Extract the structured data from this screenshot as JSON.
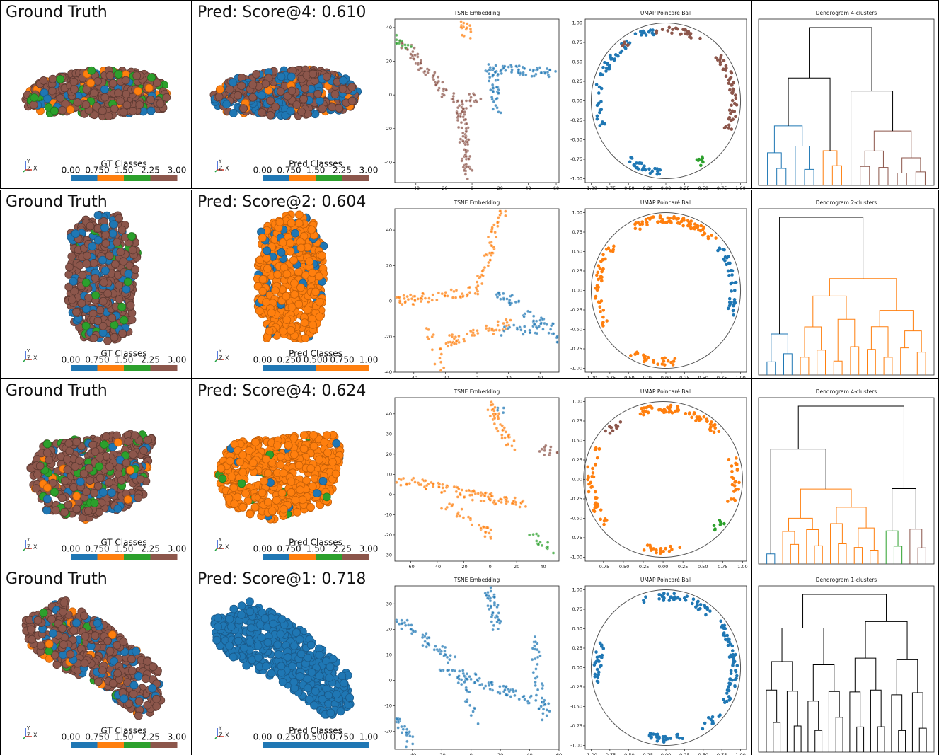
{
  "rows": [
    {
      "ground_truth": {
        "title": "Ground Truth",
        "triad": [
          "Y",
          "Z",
          "X"
        ],
        "colorbar": {
          "label": "GT Classes",
          "ticks": [
            "0.00",
            "0.750",
            "1.50",
            "2.25",
            "3.00"
          ],
          "colors": [
            "#1f77b4",
            "#ff7f0e",
            "#2ca02c",
            "#8c564b"
          ]
        }
      },
      "prediction": {
        "title": "Pred: Score@4: 0.610",
        "triad": [
          "Y",
          "Z",
          "X"
        ],
        "colorbar": {
          "label": "Pred Classes",
          "ticks": [
            "0.00",
            "0.750",
            "1.50",
            "2.25",
            "3.00"
          ],
          "colors": [
            "#1f77b4",
            "#ff7f0e",
            "#2ca02c",
            "#8c564b"
          ]
        }
      },
      "tsne": {
        "title": "TSNE Embedding",
        "xlim": [
          -55,
          62
        ],
        "xticks": [
          -40,
          -20,
          0,
          20,
          40,
          60
        ],
        "ylim": [
          -52,
          45
        ],
        "yticks": [
          -40,
          -20,
          0,
          20,
          40
        ]
      },
      "umap": {
        "title": "UMAP Poincaré Ball",
        "xlim": [
          -1.08,
          1.08
        ],
        "xticks": [
          {
            "value": -1,
            "label": "-1.00"
          },
          {
            "value": -0.75,
            "label": "-0.75"
          },
          {
            "value": -0.5,
            "label": "-0.50"
          },
          {
            "value": -0.25,
            "label": "-0.25"
          },
          {
            "value": 0,
            "label": "0.00"
          },
          {
            "value": 0.25,
            "label": "0.25"
          },
          {
            "value": 0.5,
            "label": "0.50"
          },
          {
            "value": 0.75,
            "label": "0.75"
          },
          {
            "value": 1,
            "label": "1.00"
          }
        ],
        "ylim": [
          -1.05,
          1.05
        ],
        "yticks": [
          {
            "value": -1,
            "label": "-1.00"
          },
          {
            "value": -0.75,
            "label": "-0.75"
          },
          {
            "value": -0.5,
            "label": "-0.50"
          },
          {
            "value": -0.25,
            "label": "-0.25"
          },
          {
            "value": 0,
            "label": "0.00"
          },
          {
            "value": 0.25,
            "label": "0.25"
          },
          {
            "value": 0.5,
            "label": "0.50"
          },
          {
            "value": 0.75,
            "label": "0.75"
          },
          {
            "value": 1,
            "label": "1.00"
          }
        ]
      },
      "dendrogram": {
        "title": "Dendrogram 4-clusters"
      }
    },
    {
      "ground_truth": {
        "title": "Ground Truth",
        "triad": [
          "Y",
          "Z",
          "X"
        ],
        "colorbar": {
          "label": "GT Classes",
          "ticks": [
            "0.00",
            "0.750",
            "1.50",
            "2.25",
            "3.00"
          ],
          "colors": [
            "#1f77b4",
            "#ff7f0e",
            "#2ca02c",
            "#8c564b"
          ]
        }
      },
      "prediction": {
        "title": "Pred: Score@2: 0.604",
        "triad": [
          "Y",
          "Z",
          "X"
        ],
        "colorbar": {
          "label": "Pred Classes",
          "ticks": [
            "0.00",
            "0.250",
            "0.500",
            "0.750",
            "1.00"
          ],
          "colors": [
            "#1f77b4",
            "#ff7f0e"
          ]
        }
      },
      "tsne": {
        "title": "TSNE Embedding",
        "xlim": [
          -52,
          52
        ],
        "xticks": [
          -40,
          -20,
          0,
          20,
          40
        ],
        "ylim": [
          -40,
          52
        ],
        "yticks": [
          -40,
          -20,
          0,
          20,
          40
        ]
      },
      "umap": {
        "title": "UMAP Poincaré Ball",
        "xlim": [
          -1.08,
          1.08
        ],
        "xticks": [
          {
            "value": -1,
            "label": "-1.00"
          },
          {
            "value": -0.75,
            "label": "-0.75"
          },
          {
            "value": -0.5,
            "label": "-0.50"
          },
          {
            "value": -0.25,
            "label": "-0.25"
          },
          {
            "value": 0,
            "label": "0.00"
          },
          {
            "value": 0.25,
            "label": "0.25"
          },
          {
            "value": 0.5,
            "label": "0.50"
          },
          {
            "value": 0.75,
            "label": "0.75"
          },
          {
            "value": 1,
            "label": "1.00"
          }
        ],
        "ylim": [
          -1.05,
          1.05
        ],
        "yticks": [
          {
            "value": -1,
            "label": "-1.00"
          },
          {
            "value": -0.75,
            "label": "-0.75"
          },
          {
            "value": -0.5,
            "label": "-0.50"
          },
          {
            "value": -0.25,
            "label": "-0.25"
          },
          {
            "value": 0,
            "label": "0.00"
          },
          {
            "value": 0.25,
            "label": "0.25"
          },
          {
            "value": 0.5,
            "label": "0.50"
          },
          {
            "value": 0.75,
            "label": "0.75"
          },
          {
            "value": 1,
            "label": "1.00"
          }
        ]
      },
      "dendrogram": {
        "title": "Dendrogram 2-clusters"
      }
    },
    {
      "ground_truth": {
        "title": "Ground Truth",
        "triad": [
          "Y",
          "Z",
          "X"
        ],
        "colorbar": {
          "label": "GT Classes",
          "ticks": [
            "0.00",
            "0.750",
            "1.50",
            "2.25",
            "3.00"
          ],
          "colors": [
            "#1f77b4",
            "#ff7f0e",
            "#2ca02c",
            "#8c564b"
          ]
        }
      },
      "prediction": {
        "title": "Pred: Score@4: 0.624",
        "triad": [
          "Y",
          "Z",
          "X"
        ],
        "colorbar": {
          "label": "Pred Classes",
          "ticks": [
            "0.00",
            "0.750",
            "1.50",
            "2.25",
            "3.00"
          ],
          "colors": [
            "#1f77b4",
            "#ff7f0e",
            "#2ca02c",
            "#8c564b"
          ]
        }
      },
      "tsne": {
        "title": "TSNE Embedding",
        "xlim": [
          -72,
          52
        ],
        "xticks": [
          -60,
          -40,
          -20,
          0,
          20,
          40
        ],
        "ylim": [
          -33,
          48
        ],
        "yticks": [
          -30,
          -20,
          -10,
          0,
          10,
          20,
          30,
          40
        ]
      },
      "umap": {
        "title": "UMAP Poincaré Ball",
        "xlim": [
          -0.98,
          1.05
        ],
        "xticks": [
          {
            "value": -0.75,
            "label": "-0.75"
          },
          {
            "value": -0.5,
            "label": "-0.50"
          },
          {
            "value": -0.25,
            "label": "-0.25"
          },
          {
            "value": 0,
            "label": "0.00"
          },
          {
            "value": 0.25,
            "label": "0.25"
          },
          {
            "value": 0.5,
            "label": "0.50"
          },
          {
            "value": 0.75,
            "label": "0.75"
          },
          {
            "value": 1,
            "label": "1.00"
          }
        ],
        "ylim": [
          -1.05,
          1.05
        ],
        "yticks": [
          {
            "value": -1,
            "label": "-1.00"
          },
          {
            "value": -0.75,
            "label": "-0.75"
          },
          {
            "value": -0.5,
            "label": "-0.50"
          },
          {
            "value": -0.25,
            "label": "-0.25"
          },
          {
            "value": 0,
            "label": "0.00"
          },
          {
            "value": 0.25,
            "label": "0.25"
          },
          {
            "value": 0.5,
            "label": "0.50"
          },
          {
            "value": 0.75,
            "label": "0.75"
          },
          {
            "value": 1,
            "label": "1.00"
          }
        ]
      },
      "dendrogram": {
        "title": "Dendrogram 4-clusters"
      }
    },
    {
      "ground_truth": {
        "title": "Ground Truth",
        "triad": [
          "Y",
          "Z",
          "X"
        ],
        "colorbar": {
          "label": "GT Classes",
          "ticks": [
            "0.00",
            "0.750",
            "1.50",
            "2.25",
            "3.00"
          ],
          "colors": [
            "#1f77b4",
            "#ff7f0e",
            "#2ca02c",
            "#8c564b"
          ]
        }
      },
      "prediction": {
        "title": "Pred: Score@1: 0.718",
        "triad": [
          "Y",
          "Z",
          "X"
        ],
        "colorbar": {
          "label": "Pred Classes",
          "ticks": [
            "0.00",
            "0.250",
            "0.500",
            "0.750",
            "1.00"
          ],
          "colors": [
            "#1f77b4"
          ]
        }
      },
      "tsne": {
        "title": "TSNE Embedding",
        "xlim": [
          -52,
          60
        ],
        "xticks": [
          -40,
          -20,
          0,
          20,
          40,
          60
        ],
        "ylim": [
          -27,
          37
        ],
        "yticks": [
          -20,
          -10,
          0,
          10,
          20,
          30
        ]
      },
      "umap": {
        "title": "UMAP Poincaré Ball",
        "xlim": [
          -1.08,
          1.08
        ],
        "xticks": [
          {
            "value": -1,
            "label": "-1.00"
          },
          {
            "value": -0.75,
            "label": "-0.75"
          },
          {
            "value": -0.5,
            "label": "-0.50"
          },
          {
            "value": -0.25,
            "label": "-0.25"
          },
          {
            "value": 0,
            "label": "0.00"
          },
          {
            "value": 0.25,
            "label": "0.25"
          },
          {
            "value": 0.5,
            "label": "0.50"
          },
          {
            "value": 0.75,
            "label": "0.75"
          },
          {
            "value": 1,
            "label": "1.00"
          }
        ],
        "ylim": [
          -1.05,
          1.05
        ],
        "yticks": [
          {
            "value": -1,
            "label": "-1.00"
          },
          {
            "value": -0.75,
            "label": "-0.75"
          },
          {
            "value": -0.5,
            "label": "-0.50"
          },
          {
            "value": -0.25,
            "label": "-0.25"
          },
          {
            "value": 0,
            "label": "0.00"
          },
          {
            "value": 0.25,
            "label": "0.25"
          },
          {
            "value": 0.5,
            "label": "0.50"
          },
          {
            "value": 0.75,
            "label": "0.75"
          },
          {
            "value": 1,
            "label": "1.00"
          }
        ]
      },
      "dendrogram": {
        "title": "Dendrogram 1-clusters"
      }
    }
  ]
}
